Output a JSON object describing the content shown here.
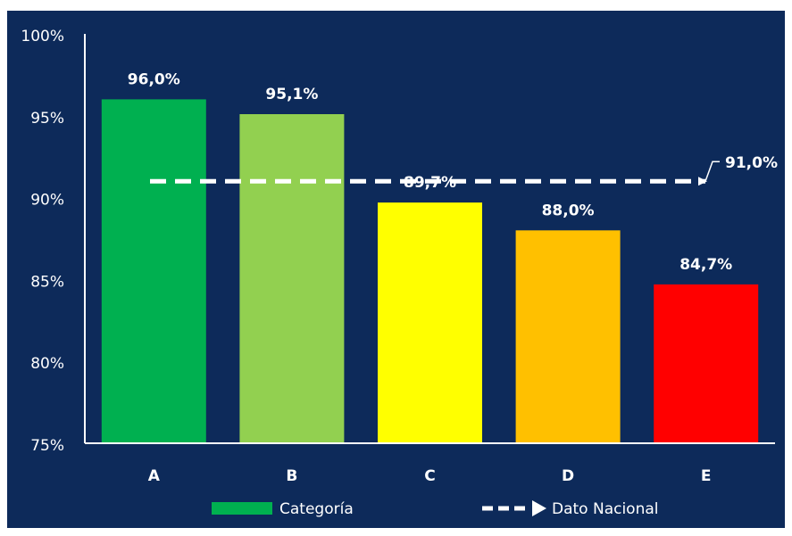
{
  "chart_data": {
    "type": "bar",
    "title": "",
    "xlabel": "",
    "ylabel": "",
    "categories": [
      "A",
      "B",
      "C",
      "D",
      "E"
    ],
    "values": [
      96.0,
      95.1,
      89.7,
      88.0,
      84.7
    ],
    "value_labels": [
      "96,0%",
      "95,1%",
      "89,7%",
      "88,0%",
      "84,7%"
    ],
    "bar_colors": [
      "#00B050",
      "#92D050",
      "#FFFF00",
      "#FFC000",
      "#FF0000"
    ],
    "ylim": [
      75,
      100
    ],
    "y_ticks": [
      75,
      80,
      85,
      90,
      95,
      100
    ],
    "y_tick_labels": [
      "75%",
      "80%",
      "85%",
      "90%",
      "95%",
      "100%"
    ],
    "grid": false,
    "reference_line": {
      "value": 91.0,
      "label": "91,0%",
      "style": "dashed-arrow",
      "color": "#ffffff"
    },
    "legend": {
      "placement": "bottom",
      "entries": [
        {
          "label": "Categoría",
          "kind": "bar",
          "color": "#00B050"
        },
        {
          "label": "Dato Nacional",
          "kind": "dashed-arrow",
          "color": "#ffffff"
        }
      ]
    },
    "background_color": "#0D2A5A",
    "axis_color": "#ffffff"
  }
}
